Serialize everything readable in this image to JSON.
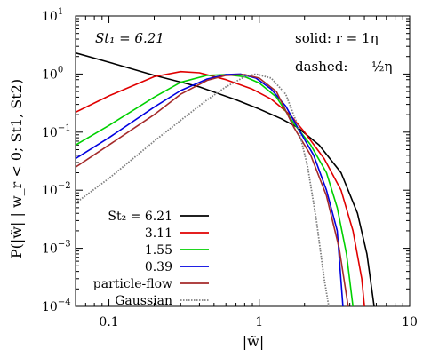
{
  "chart_data": {
    "type": "line",
    "xlabel": "|w̃|",
    "ylabel": "P(|w̃| | w_r < 0; St1, St2)",
    "x_scale": "log",
    "y_scale": "log",
    "xlim": [
      0.06,
      10
    ],
    "ylim": [
      0.0001,
      10
    ],
    "x_ticks": [
      {
        "value": 0.1,
        "label": "0.1"
      },
      {
        "value": 1,
        "label": "1"
      },
      {
        "value": 10,
        "label": "10"
      }
    ],
    "y_ticks": [
      {
        "value": 10,
        "base": "10",
        "exp": "1"
      },
      {
        "value": 1,
        "base": "10",
        "exp": "0"
      },
      {
        "value": 0.1,
        "base": "10",
        "exp": "−1"
      },
      {
        "value": 0.01,
        "base": "10",
        "exp": "−2"
      },
      {
        "value": 0.001,
        "base": "10",
        "exp": "−3"
      },
      {
        "value": 0.0001,
        "base": "10",
        "exp": "−4"
      }
    ],
    "annotations": {
      "st1": "St₁ = 6.21",
      "solid": "solid: r = 1η",
      "dashed_label": "dashed:",
      "dashed_value": "½η"
    },
    "legend_placement": "bottom-left",
    "series": [
      {
        "name": "St₂ = 6.21",
        "color": "#000000",
        "x": [
          0.06,
          0.1,
          0.2,
          0.4,
          0.7,
          1.0,
          1.4,
          1.8,
          2.5,
          3.5,
          4.5,
          5.2,
          5.8
        ],
        "y": [
          2.3,
          1.6,
          0.95,
          0.6,
          0.36,
          0.25,
          0.17,
          0.12,
          0.06,
          0.02,
          0.004,
          0.0008,
          0.0001
        ]
      },
      {
        "name": "3.11",
        "color": "#e00000",
        "x": [
          0.06,
          0.1,
          0.2,
          0.3,
          0.4,
          0.6,
          0.9,
          1.2,
          1.6,
          2.0,
          2.7,
          3.5,
          4.2,
          4.8,
          5.0
        ],
        "y": [
          0.22,
          0.42,
          0.9,
          1.1,
          1.05,
          0.8,
          0.55,
          0.37,
          0.2,
          0.1,
          0.035,
          0.01,
          0.002,
          0.0003,
          0.0001
        ]
      },
      {
        "name": "1.55",
        "color": "#00d000",
        "x": [
          0.06,
          0.1,
          0.2,
          0.3,
          0.45,
          0.6,
          0.8,
          1.0,
          1.3,
          1.7,
          2.2,
          2.8,
          3.3,
          3.8,
          4.2
        ],
        "y": [
          0.06,
          0.13,
          0.4,
          0.72,
          0.95,
          0.98,
          0.9,
          0.7,
          0.4,
          0.14,
          0.06,
          0.02,
          0.005,
          0.0008,
          0.0001
        ]
      },
      {
        "name": "0.39",
        "color": "#0000e0",
        "x": [
          0.06,
          0.1,
          0.2,
          0.3,
          0.45,
          0.6,
          0.75,
          0.95,
          1.2,
          1.5,
          1.8,
          2.3,
          2.8,
          3.3,
          3.6
        ],
        "y": [
          0.035,
          0.08,
          0.27,
          0.52,
          0.82,
          0.98,
          1.0,
          0.85,
          0.55,
          0.28,
          0.12,
          0.04,
          0.01,
          0.002,
          0.0001
        ]
      },
      {
        "name": "particle-flow",
        "color": "#a52a2a",
        "x": [
          0.06,
          0.1,
          0.2,
          0.3,
          0.45,
          0.6,
          0.8,
          1.0,
          1.3,
          1.7,
          2.2,
          2.8,
          3.4,
          3.9
        ],
        "y": [
          0.025,
          0.06,
          0.2,
          0.45,
          0.78,
          0.95,
          0.98,
          0.85,
          0.5,
          0.12,
          0.04,
          0.008,
          0.001,
          0.0001
        ]
      },
      {
        "name": "Gaussian",
        "color": "#808080",
        "dotted": true,
        "x": [
          0.06,
          0.1,
          0.2,
          0.3,
          0.45,
          0.6,
          0.8,
          0.95,
          1.2,
          1.5,
          1.8,
          2.1,
          2.4,
          2.7,
          2.9
        ],
        "y": [
          0.006,
          0.016,
          0.07,
          0.16,
          0.36,
          0.6,
          0.9,
          1.0,
          0.85,
          0.45,
          0.13,
          0.025,
          0.003,
          0.0003,
          0.0001
        ]
      }
    ]
  }
}
